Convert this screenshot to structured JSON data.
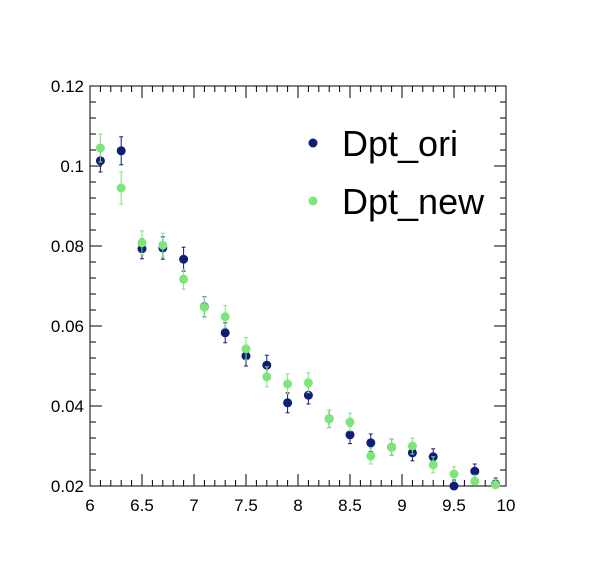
{
  "chart_data": {
    "type": "scatter",
    "title": "",
    "xlabel": "",
    "ylabel": "",
    "xlim": [
      6,
      10
    ],
    "ylim": [
      0.02,
      0.12
    ],
    "x_ticks": [
      6,
      6.5,
      7,
      7.5,
      8,
      8.5,
      9,
      9.5,
      10
    ],
    "x_tick_labels": [
      "6",
      "6.5",
      "7",
      "7.5",
      "8",
      "8.5",
      "9",
      "9.5",
      "10"
    ],
    "y_ticks": [
      0.02,
      0.04,
      0.06,
      0.08,
      0.1,
      0.12
    ],
    "y_tick_labels": [
      "0.02",
      "0.04",
      "0.06",
      "0.08",
      "0.1",
      "0.12"
    ],
    "grid": false,
    "legend_position": "top-right",
    "series": [
      {
        "name": "Dpt_ori",
        "color": "#0f1c78",
        "x": [
          6.1,
          6.3,
          6.5,
          6.7,
          6.9,
          7.1,
          7.3,
          7.5,
          7.7,
          7.9,
          8.1,
          8.3,
          8.5,
          8.7,
          8.9,
          9.1,
          9.3,
          9.5,
          9.7,
          9.9
        ],
        "y": [
          0.1013,
          0.1038,
          0.0793,
          0.0795,
          0.0767,
          0.0648,
          0.0583,
          0.0525,
          0.0502,
          0.0408,
          0.0427,
          0.0368,
          0.0328,
          0.0308,
          0.0297,
          0.0283,
          0.0273,
          0.02,
          0.0237,
          0.0205
        ],
        "yerr": [
          0.0028,
          0.0035,
          0.0025,
          0.0028,
          0.003,
          0.0025,
          0.0025,
          0.0025,
          0.0025,
          0.0025,
          0.0022,
          0.0022,
          0.0022,
          0.0022,
          0.002,
          0.002,
          0.002,
          0.0015,
          0.0018,
          0.0015
        ]
      },
      {
        "name": "Dpt_new",
        "color": "#7ee57a",
        "x": [
          6.1,
          6.3,
          6.5,
          6.7,
          6.9,
          7.1,
          7.3,
          7.5,
          7.7,
          7.9,
          8.1,
          8.3,
          8.5,
          8.7,
          8.9,
          9.1,
          9.3,
          9.5,
          9.7,
          9.9
        ],
        "y": [
          0.1045,
          0.0945,
          0.0808,
          0.0802,
          0.0717,
          0.0647,
          0.0623,
          0.0543,
          0.0473,
          0.0455,
          0.0458,
          0.0368,
          0.036,
          0.0275,
          0.0297,
          0.03,
          0.0253,
          0.023,
          0.0212,
          0.0203
        ],
        "yerr": [
          0.0035,
          0.004,
          0.003,
          0.003,
          0.0025,
          0.0025,
          0.0028,
          0.0028,
          0.0025,
          0.0025,
          0.0025,
          0.0022,
          0.0022,
          0.002,
          0.002,
          0.002,
          0.002,
          0.0018,
          0.0015,
          0.0015
        ]
      }
    ]
  }
}
